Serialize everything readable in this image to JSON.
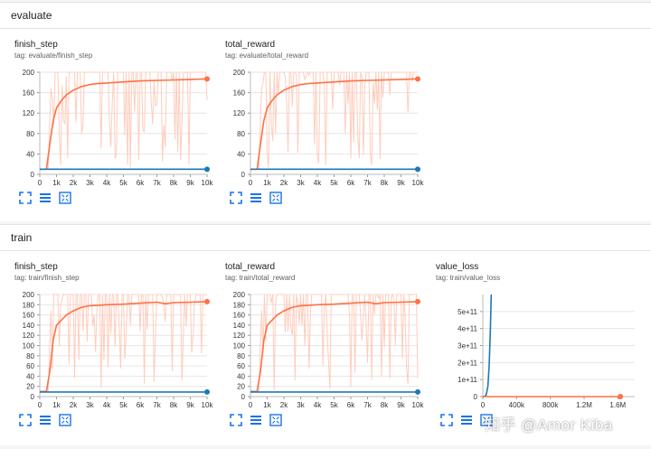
{
  "sections": [
    {
      "title": "evaluate",
      "cards": [
        {
          "title": "finish_step",
          "tag": "tag: evaluate/finish_step"
        },
        {
          "title": "total_reward",
          "tag": "tag: evaluate/total_reward"
        }
      ]
    },
    {
      "title": "train",
      "cards": [
        {
          "title": "finish_step",
          "tag": "tag: train/finish_step"
        },
        {
          "title": "total_reward",
          "tag": "tag: train/total_reward"
        },
        {
          "title": "value_loss",
          "tag": "tag: train/value_loss"
        }
      ]
    }
  ],
  "icons": {
    "fit": "fit-domain-icon",
    "log": "toggle-log-scale-icon",
    "expand": "expand-chart-icon"
  },
  "colors": {
    "orange": "#ff7043",
    "orange_raw": "#ffccbc",
    "blue": "#1f78b4",
    "icon_blue": "#1a73e8"
  },
  "watermark": "知乎 @Amor Kiba",
  "chart_data": [
    {
      "id": "evaluate-finish_step",
      "type": "line",
      "title": "finish_step",
      "xlabel": "",
      "ylabel": "",
      "xlim": [
        0,
        10000
      ],
      "ylim": [
        0,
        200
      ],
      "yticks": [
        "0",
        "40",
        "80",
        "120",
        "160",
        "200"
      ],
      "xticks": [
        "0",
        "1k",
        "2k",
        "3k",
        "4k",
        "5k",
        "6k",
        "7k",
        "8k",
        "9k",
        "10k"
      ],
      "series": [
        {
          "color": "#ff7043",
          "smoothed": true,
          "x": [
            0,
            400,
            600,
            800,
            1000,
            1300,
            1600,
            2000,
            2500,
            3000,
            3500,
            4000,
            5000,
            6000,
            7000,
            8000,
            9000,
            10000
          ],
          "y": [
            10,
            10,
            60,
            105,
            130,
            145,
            156,
            165,
            172,
            176,
            178,
            179,
            181,
            183,
            184,
            185,
            186,
            187
          ]
        },
        {
          "color": "#1f78b4",
          "x": [
            0,
            10000
          ],
          "y": [
            10,
            10
          ]
        }
      ]
    },
    {
      "id": "evaluate-total_reward",
      "type": "line",
      "title": "total_reward",
      "xlabel": "",
      "ylabel": "",
      "xlim": [
        0,
        10000
      ],
      "ylim": [
        0,
        200
      ],
      "yticks": [
        "0",
        "40",
        "80",
        "120",
        "160",
        "200"
      ],
      "xticks": [
        "0",
        "1k",
        "2k",
        "3k",
        "4k",
        "5k",
        "6k",
        "7k",
        "8k",
        "9k",
        "10k"
      ],
      "series": [
        {
          "color": "#ff7043",
          "smoothed": true,
          "x": [
            0,
            400,
            600,
            800,
            1000,
            1300,
            1600,
            2000,
            2500,
            3000,
            3500,
            4000,
            5000,
            6000,
            7000,
            8000,
            9000,
            10000
          ],
          "y": [
            10,
            10,
            60,
            105,
            130,
            145,
            156,
            165,
            172,
            176,
            178,
            179,
            181,
            183,
            184,
            185,
            186,
            187
          ]
        },
        {
          "color": "#1f78b4",
          "x": [
            0,
            10000
          ],
          "y": [
            10,
            10
          ]
        }
      ]
    },
    {
      "id": "train-finish_step",
      "type": "line",
      "title": "finish_step",
      "xlabel": "",
      "ylabel": "",
      "xlim": [
        0,
        10000
      ],
      "ylim": [
        0,
        200
      ],
      "yticks": [
        "0",
        "20",
        "40",
        "60",
        "80",
        "100",
        "120",
        "140",
        "160",
        "180",
        "200"
      ],
      "xticks": [
        "0",
        "1k",
        "2k",
        "3k",
        "4k",
        "5k",
        "6k",
        "7k",
        "8k",
        "9k",
        "10k"
      ],
      "series": [
        {
          "color": "#ff7043",
          "smoothed": true,
          "x": [
            0,
            400,
            600,
            800,
            1000,
            1300,
            1600,
            2000,
            2500,
            3000,
            3500,
            4000,
            5000,
            6000,
            7000,
            7500,
            8000,
            9000,
            10000
          ],
          "y": [
            10,
            10,
            50,
            110,
            140,
            150,
            160,
            168,
            175,
            178,
            179,
            180,
            181,
            183,
            185,
            182,
            184,
            185,
            186
          ]
        },
        {
          "color": "#1f78b4",
          "x": [
            0,
            10000
          ],
          "y": [
            9,
            9
          ]
        }
      ]
    },
    {
      "id": "train-total_reward",
      "type": "line",
      "title": "total_reward",
      "xlabel": "",
      "ylabel": "",
      "xlim": [
        0,
        10000
      ],
      "ylim": [
        0,
        200
      ],
      "yticks": [
        "0",
        "20",
        "40",
        "60",
        "80",
        "100",
        "120",
        "140",
        "160",
        "180",
        "200"
      ],
      "xticks": [
        "0",
        "1k",
        "2k",
        "3k",
        "4k",
        "5k",
        "6k",
        "7k",
        "8k",
        "9k",
        "10k"
      ],
      "series": [
        {
          "color": "#ff7043",
          "smoothed": true,
          "x": [
            0,
            400,
            600,
            800,
            1000,
            1300,
            1600,
            2000,
            2500,
            3000,
            3500,
            4000,
            5000,
            6000,
            7000,
            7500,
            8000,
            9000,
            10000
          ],
          "y": [
            10,
            10,
            50,
            110,
            140,
            150,
            160,
            168,
            175,
            178,
            179,
            180,
            181,
            183,
            185,
            182,
            184,
            185,
            186
          ]
        },
        {
          "color": "#1f78b4",
          "x": [
            0,
            10000
          ],
          "y": [
            9,
            9
          ]
        }
      ]
    },
    {
      "id": "train-value_loss",
      "type": "line",
      "title": "value_loss",
      "xlabel": "",
      "ylabel": "",
      "xlim": [
        0,
        1800000
      ],
      "ylim": [
        0,
        600000000000
      ],
      "yticks": [
        "0",
        "1e+11",
        "2e+11",
        "3e+11",
        "4e+11",
        "5e+11"
      ],
      "xticks": [
        "0",
        "400k",
        "800k",
        "1.2M",
        "1.6M"
      ],
      "series": [
        {
          "color": "#1f78b4",
          "x": [
            0,
            20000,
            40000,
            60000,
            75000,
            90000,
            100000
          ],
          "y": [
            0,
            1000000000,
            10000000000,
            60000000000,
            180000000000,
            400000000000,
            620000000000
          ]
        },
        {
          "color": "#ff7043",
          "x": [
            0,
            1630000
          ],
          "y": [
            0,
            0
          ]
        }
      ]
    }
  ]
}
